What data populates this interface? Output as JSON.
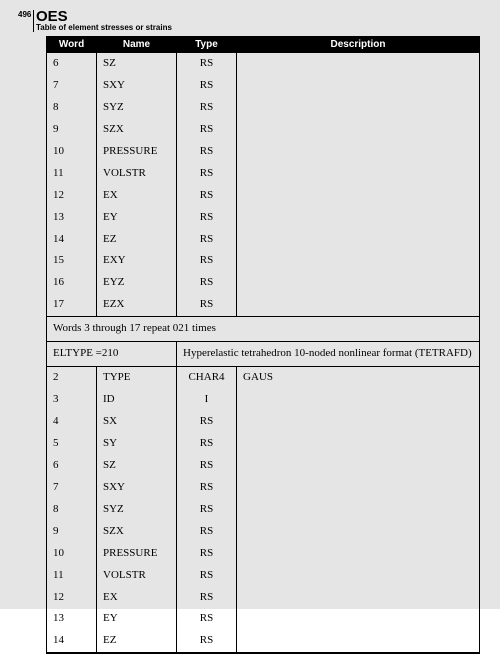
{
  "page_number": "496",
  "code": "OES",
  "subtitle": "Table of element stresses or strains",
  "columns": [
    "Word",
    "Name",
    "Type",
    "Description"
  ],
  "rows1": [
    {
      "w": "6",
      "n": "SZ",
      "t": "RS",
      "d": ""
    },
    {
      "w": "7",
      "n": "SXY",
      "t": "RS",
      "d": ""
    },
    {
      "w": "8",
      "n": "SYZ",
      "t": "RS",
      "d": ""
    },
    {
      "w": "9",
      "n": "SZX",
      "t": "RS",
      "d": ""
    },
    {
      "w": "10",
      "n": "PRESSURE",
      "t": "RS",
      "d": ""
    },
    {
      "w": "11",
      "n": "VOLSTR",
      "t": "RS",
      "d": ""
    },
    {
      "w": "12",
      "n": "EX",
      "t": "RS",
      "d": ""
    },
    {
      "w": "13",
      "n": "EY",
      "t": "RS",
      "d": ""
    },
    {
      "w": "14",
      "n": "EZ",
      "t": "RS",
      "d": ""
    },
    {
      "w": "15",
      "n": "EXY",
      "t": "RS",
      "d": ""
    },
    {
      "w": "16",
      "n": "EYZ",
      "t": "RS",
      "d": ""
    },
    {
      "w": "17",
      "n": "EZX",
      "t": "RS",
      "d": ""
    }
  ],
  "repeat_note": "Words 3 through 17 repeat 021 times",
  "eltype_label": "ELTYPE =210",
  "eltype_desc": "Hyperelastic tetrahedron 10-noded nonlinear format (TETRAFD)",
  "rows2": [
    {
      "w": "2",
      "n": "TYPE",
      "t": "CHAR4",
      "d": "GAUS"
    },
    {
      "w": "3",
      "n": "ID",
      "t": "I",
      "d": ""
    },
    {
      "w": "4",
      "n": "SX",
      "t": "RS",
      "d": ""
    },
    {
      "w": "5",
      "n": "SY",
      "t": "RS",
      "d": ""
    },
    {
      "w": "6",
      "n": "SZ",
      "t": "RS",
      "d": ""
    },
    {
      "w": "7",
      "n": "SXY",
      "t": "RS",
      "d": ""
    },
    {
      "w": "8",
      "n": "SYZ",
      "t": "RS",
      "d": ""
    },
    {
      "w": "9",
      "n": "SZX",
      "t": "RS",
      "d": ""
    },
    {
      "w": "10",
      "n": "PRESSURE",
      "t": "RS",
      "d": ""
    },
    {
      "w": "11",
      "n": "VOLSTR",
      "t": "RS",
      "d": ""
    },
    {
      "w": "12",
      "n": "EX",
      "t": "RS",
      "d": ""
    },
    {
      "w": "13",
      "n": "EY",
      "t": "RS",
      "d": ""
    },
    {
      "w": "14",
      "n": "EZ",
      "t": "RS",
      "d": ""
    }
  ]
}
